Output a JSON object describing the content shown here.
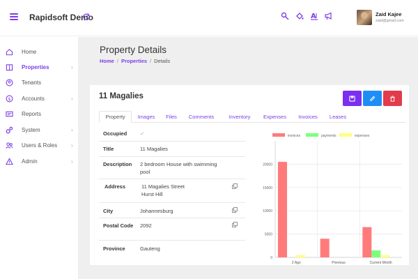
{
  "app": {
    "brand": "Rapidsoft Demo"
  },
  "header": {
    "icons": [
      "key-search-icon",
      "paint-bucket-icon",
      "font-accessibility-icon",
      "megaphone-icon"
    ],
    "user": {
      "name": "Zaid Kajee",
      "email": "zaid@gmail.com"
    }
  },
  "sidebar": {
    "items": [
      {
        "label": "Home",
        "icon": "home-icon",
        "chevron": false,
        "active": false
      },
      {
        "label": "Properties",
        "icon": "building-icon",
        "chevron": true,
        "active": true
      },
      {
        "label": "Tenants",
        "icon": "tenant-icon",
        "chevron": false,
        "active": false
      },
      {
        "label": "Accounts",
        "icon": "dollar-icon",
        "chevron": true,
        "active": false
      },
      {
        "label": "Reports",
        "icon": "reports-icon",
        "chevron": false,
        "active": false
      },
      {
        "label": "System",
        "icon": "system-gears-icon",
        "chevron": true,
        "active": false
      },
      {
        "label": "Users & Roles",
        "icon": "users-icon",
        "chevron": true,
        "active": false
      },
      {
        "label": "Admin",
        "icon": "warning-icon",
        "chevron": true,
        "active": false
      }
    ],
    "chevron_glyph": "›"
  },
  "page": {
    "title": "Property Details",
    "breadcrumb": {
      "home": "Home",
      "properties": "Properties",
      "current": "Details",
      "sep": "/"
    }
  },
  "property": {
    "name": "11 Magalies",
    "tabs": [
      "Property",
      "Images",
      "Files",
      "Comments",
      "Inventory",
      "Expenses",
      "Invoices",
      "Leases"
    ],
    "active_tab": "Property",
    "details": [
      {
        "label": "Occupied",
        "value": "✓",
        "copy": false
      },
      {
        "label": "Title",
        "value": "11 Magalies",
        "copy": false
      },
      {
        "label": "Description",
        "value": "2 bedroom House with swimming pool",
        "copy": false
      },
      {
        "label": "Address",
        "value": "11 Magalies Street\nHurst Hill",
        "copy": true
      },
      {
        "label": "City",
        "value": "Johannesburg",
        "copy": true
      },
      {
        "label": "Postal Code",
        "value": "2092",
        "copy": true
      },
      {
        "label": "Province",
        "value": "Gauteng",
        "copy": false
      }
    ]
  },
  "colors": {
    "accent": "#7b3fe4",
    "save": "#7b2ff0",
    "edit": "#1e8ef5",
    "delete": "#e23b4a"
  },
  "chart_data": {
    "type": "bar",
    "categories": [
      "2 Ago",
      "Previous",
      "Current Month"
    ],
    "series": [
      {
        "name": "invoices",
        "color": "#ff7b7b",
        "values": [
          20500,
          4000,
          6500
        ]
      },
      {
        "name": "payments",
        "color": "#7dff7d",
        "values": [
          0,
          0,
          1500
        ]
      },
      {
        "name": "expenses",
        "color": "#ffff80",
        "values": [
          500,
          0,
          500
        ]
      }
    ],
    "yticks": [
      0,
      5000,
      10000,
      15000,
      20000
    ],
    "ylim": [
      0,
      25000
    ],
    "legend": "top",
    "grid": true
  }
}
